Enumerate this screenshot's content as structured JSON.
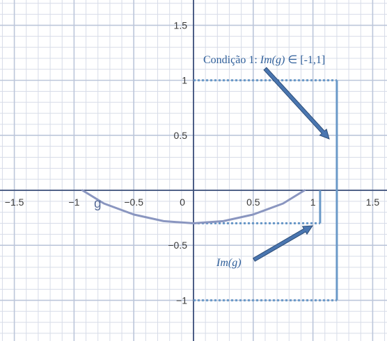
{
  "chart_data": {
    "type": "line",
    "xlim": [
      -1.62,
      1.62
    ],
    "ylim": [
      -1.37,
      1.73
    ],
    "x_ticks": [
      -1.5,
      -1,
      -0.5,
      0,
      0.5,
      1,
      1.5
    ],
    "x_tick_labels": [
      "−1.5",
      "−1",
      "−0.5",
      "0",
      "0.5",
      "1",
      "1.5"
    ],
    "y_ticks": [
      -1,
      -0.5,
      0.5,
      1,
      1.5
    ],
    "y_tick_labels": [
      "−1",
      "−0.5",
      "0.5",
      "1",
      "1.5"
    ],
    "grid": true,
    "minor_grid_step": 0.1,
    "function": {
      "name": "g",
      "label": "g",
      "color": "#8a96c0",
      "domain": [
        -0.93,
        0.93
      ],
      "points": [
        [
          -0.93,
          0
        ],
        [
          -0.75,
          -0.12
        ],
        [
          -0.5,
          -0.22
        ],
        [
          -0.25,
          -0.28
        ],
        [
          0,
          -0.3
        ],
        [
          0.25,
          -0.28
        ],
        [
          0.5,
          -0.22
        ],
        [
          0.75,
          -0.12
        ],
        [
          0.93,
          0
        ]
      ]
    },
    "range_bars": [
      {
        "name": "Im(g)",
        "x": 1.06,
        "y_from": -0.3,
        "y_to": 0,
        "color": "#6a99c8"
      },
      {
        "name": "condition-interval",
        "x": 1.2,
        "y_from": -1,
        "y_to": 1,
        "color": "#6a99c8"
      }
    ],
    "dotted_guides": [
      {
        "y": 1,
        "x_from": 0,
        "x_to": 1.2
      },
      {
        "y": -1,
        "x_from": 0,
        "x_to": 1.2
      },
      {
        "y": -0.3,
        "x_from": 0,
        "x_to": 1.06
      }
    ],
    "annotations": [
      {
        "text_parts": [
          "Condição 1: ",
          "Im(g)",
          " ∈ [-1,1]"
        ],
        "italic_part": 1
      },
      {
        "text_parts": [
          "",
          "Im(g)",
          ""
        ],
        "italic_part": 1
      }
    ],
    "colors": {
      "grid_minor": "#d7dce8",
      "grid_major": "#bcc6da",
      "axis": "#3c4f7a",
      "accent": "#6a99c8",
      "arrow": "#4a76b0",
      "arrow_edge": "#2e4e78"
    }
  }
}
